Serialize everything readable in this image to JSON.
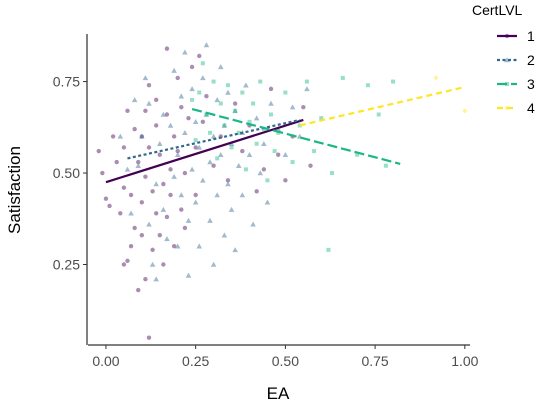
{
  "chart_data": {
    "type": "scatter",
    "xlabel": "EA",
    "ylabel": "Satisfaction",
    "xlim": [
      -0.05,
      1.02
    ],
    "ylim": [
      0.03,
      0.88
    ],
    "xticks": [
      "0.00",
      "0.25",
      "0.50",
      "0.75",
      "1.00"
    ],
    "xtick_values": [
      0,
      0.25,
      0.5,
      0.75,
      1.0
    ],
    "yticks": [
      "0.25",
      "0.50",
      "0.75"
    ],
    "ytick_values": [
      0.25,
      0.5,
      0.75
    ],
    "grid": false,
    "legend": {
      "title": "CertLVL",
      "position": "right"
    },
    "series": [
      {
        "name": "1",
        "color": "#440154",
        "marker": "circle",
        "line": "solid",
        "fit": [
          [
            0.0,
            0.475
          ],
          [
            0.55,
            0.645
          ]
        ],
        "points": [
          [
            -0.02,
            0.56
          ],
          [
            -0.01,
            0.5
          ],
          [
            0.0,
            0.43
          ],
          [
            0.01,
            0.41
          ],
          [
            0.02,
            0.6
          ],
          [
            0.03,
            0.53
          ],
          [
            0.04,
            0.39
          ],
          [
            0.05,
            0.57
          ],
          [
            0.05,
            0.46
          ],
          [
            0.05,
            0.25
          ],
          [
            0.06,
            0.26
          ],
          [
            0.06,
            0.67
          ],
          [
            0.07,
            0.44
          ],
          [
            0.07,
            0.3
          ],
          [
            0.08,
            0.62
          ],
          [
            0.08,
            0.35
          ],
          [
            0.09,
            0.53
          ],
          [
            0.09,
            0.18
          ],
          [
            0.1,
            0.6
          ],
          [
            0.1,
            0.42
          ],
          [
            0.1,
            0.33
          ],
          [
            0.11,
            0.21
          ],
          [
            0.11,
            0.67
          ],
          [
            0.11,
            0.49
          ],
          [
            0.12,
            0.74
          ],
          [
            0.12,
            0.57
          ],
          [
            0.12,
            0.05
          ],
          [
            0.13,
            0.45
          ],
          [
            0.13,
            0.29
          ],
          [
            0.14,
            0.63
          ],
          [
            0.14,
            0.39
          ],
          [
            0.14,
            0.7
          ],
          [
            0.15,
            0.55
          ],
          [
            0.15,
            0.33
          ],
          [
            0.16,
            0.25
          ],
          [
            0.16,
            0.47
          ],
          [
            0.17,
            0.84
          ],
          [
            0.17,
            0.66
          ],
          [
            0.17,
            0.38
          ],
          [
            0.18,
            0.51
          ],
          [
            0.18,
            0.44
          ],
          [
            0.19,
            0.6
          ],
          [
            0.19,
            0.3
          ],
          [
            0.2,
            0.76
          ],
          [
            0.2,
            0.56
          ],
          [
            0.21,
            0.4
          ],
          [
            0.21,
            0.68
          ],
          [
            0.22,
            0.5
          ],
          [
            0.22,
            0.35
          ],
          [
            0.23,
            0.65
          ],
          [
            0.24,
            0.79
          ],
          [
            0.25,
            0.57
          ],
          [
            0.25,
            0.44
          ],
          [
            0.26,
            0.82
          ],
          [
            0.27,
            0.64
          ],
          [
            0.28,
            0.71
          ],
          [
            0.3,
            0.52
          ],
          [
            0.32,
            0.6
          ],
          [
            0.34,
            0.48
          ],
          [
            0.36,
            0.69
          ],
          [
            0.38,
            0.56
          ],
          [
            0.4,
            0.63
          ],
          [
            0.42,
            0.45
          ],
          [
            0.44,
            0.51
          ],
          [
            0.46,
            0.73
          ],
          [
            0.48,
            0.55
          ],
          [
            0.5,
            0.48
          ],
          [
            0.52,
            0.6
          ],
          [
            0.55,
            0.68
          ],
          [
            0.57,
            0.52
          ]
        ]
      },
      {
        "name": "2",
        "color": "#31688e",
        "marker": "triangle",
        "line": "dotted",
        "fit": [
          [
            0.06,
            0.54
          ],
          [
            0.54,
            0.645
          ]
        ],
        "points": [
          [
            0.04,
            0.6
          ],
          [
            0.06,
            0.51
          ],
          [
            0.07,
            0.39
          ],
          [
            0.08,
            0.7
          ],
          [
            0.09,
            0.52
          ],
          [
            0.1,
            0.6
          ],
          [
            0.11,
            0.76
          ],
          [
            0.12,
            0.69
          ],
          [
            0.12,
            0.36
          ],
          [
            0.13,
            0.25
          ],
          [
            0.14,
            0.47
          ],
          [
            0.14,
            0.21
          ],
          [
            0.15,
            0.58
          ],
          [
            0.16,
            0.66
          ],
          [
            0.16,
            0.4
          ],
          [
            0.17,
            0.32
          ],
          [
            0.18,
            0.63
          ],
          [
            0.19,
            0.78
          ],
          [
            0.19,
            0.49
          ],
          [
            0.2,
            0.55
          ],
          [
            0.2,
            0.3
          ],
          [
            0.21,
            0.71
          ],
          [
            0.21,
            0.44
          ],
          [
            0.22,
            0.83
          ],
          [
            0.22,
            0.61
          ],
          [
            0.23,
            0.37
          ],
          [
            0.23,
            0.22
          ],
          [
            0.24,
            0.51
          ],
          [
            0.24,
            0.73
          ],
          [
            0.25,
            0.64
          ],
          [
            0.25,
            0.42
          ],
          [
            0.26,
            0.57
          ],
          [
            0.26,
            0.3
          ],
          [
            0.27,
            0.76
          ],
          [
            0.27,
            0.48
          ],
          [
            0.28,
            0.85
          ],
          [
            0.28,
            0.66
          ],
          [
            0.29,
            0.37
          ],
          [
            0.29,
            0.53
          ],
          [
            0.3,
            0.6
          ],
          [
            0.3,
            0.25
          ],
          [
            0.31,
            0.44
          ],
          [
            0.31,
            0.7
          ],
          [
            0.32,
            0.79
          ],
          [
            0.32,
            0.55
          ],
          [
            0.33,
            0.33
          ],
          [
            0.33,
            0.63
          ],
          [
            0.34,
            0.47
          ],
          [
            0.34,
            0.72
          ],
          [
            0.35,
            0.58
          ],
          [
            0.35,
            0.4
          ],
          [
            0.36,
            0.67
          ],
          [
            0.36,
            0.29
          ],
          [
            0.37,
            0.52
          ],
          [
            0.38,
            0.61
          ],
          [
            0.38,
            0.44
          ],
          [
            0.39,
            0.74
          ],
          [
            0.4,
            0.55
          ],
          [
            0.41,
            0.36
          ],
          [
            0.42,
            0.65
          ],
          [
            0.43,
            0.5
          ],
          [
            0.44,
            0.58
          ],
          [
            0.45,
            0.42
          ],
          [
            0.46,
            0.69
          ],
          [
            0.48,
            0.62
          ],
          [
            0.5,
            0.55
          ],
          [
            0.52,
            0.68
          ],
          [
            0.54,
            0.6
          ],
          [
            0.56,
            0.73
          ]
        ]
      },
      {
        "name": "3",
        "color": "#1bb886",
        "marker": "square",
        "line": "longdash",
        "fit": [
          [
            0.24,
            0.675
          ],
          [
            0.82,
            0.525
          ]
        ],
        "points": [
          [
            0.24,
            0.7
          ],
          [
            0.25,
            0.59
          ],
          [
            0.26,
            0.72
          ],
          [
            0.27,
            0.8
          ],
          [
            0.28,
            0.66
          ],
          [
            0.29,
            0.61
          ],
          [
            0.3,
            0.75
          ],
          [
            0.31,
            0.54
          ],
          [
            0.32,
            0.69
          ],
          [
            0.33,
            0.63
          ],
          [
            0.34,
            0.74
          ],
          [
            0.35,
            0.57
          ],
          [
            0.36,
            0.67
          ],
          [
            0.37,
            0.61
          ],
          [
            0.38,
            0.72
          ],
          [
            0.39,
            0.51
          ],
          [
            0.4,
            0.64
          ],
          [
            0.41,
            0.69
          ],
          [
            0.42,
            0.58
          ],
          [
            0.43,
            0.75
          ],
          [
            0.44,
            0.62
          ],
          [
            0.45,
            0.48
          ],
          [
            0.46,
            0.66
          ],
          [
            0.47,
            0.56
          ],
          [
            0.48,
            0.61
          ],
          [
            0.5,
            0.72
          ],
          [
            0.52,
            0.53
          ],
          [
            0.54,
            0.63
          ],
          [
            0.56,
            0.75
          ],
          [
            0.58,
            0.56
          ],
          [
            0.6,
            0.65
          ],
          [
            0.62,
            0.29
          ],
          [
            0.63,
            0.5
          ],
          [
            0.66,
            0.76
          ],
          [
            0.7,
            0.55
          ],
          [
            0.73,
            0.74
          ],
          [
            0.76,
            0.66
          ],
          [
            0.78,
            0.52
          ],
          [
            0.8,
            0.75
          ]
        ]
      },
      {
        "name": "4",
        "color": "#fde725",
        "marker": "diamond",
        "line": "dashed",
        "fit": [
          [
            0.54,
            0.63
          ],
          [
            1.0,
            0.735
          ]
        ],
        "points": [
          [
            0.92,
            0.76
          ],
          [
            1.0,
            0.67
          ]
        ]
      }
    ]
  }
}
